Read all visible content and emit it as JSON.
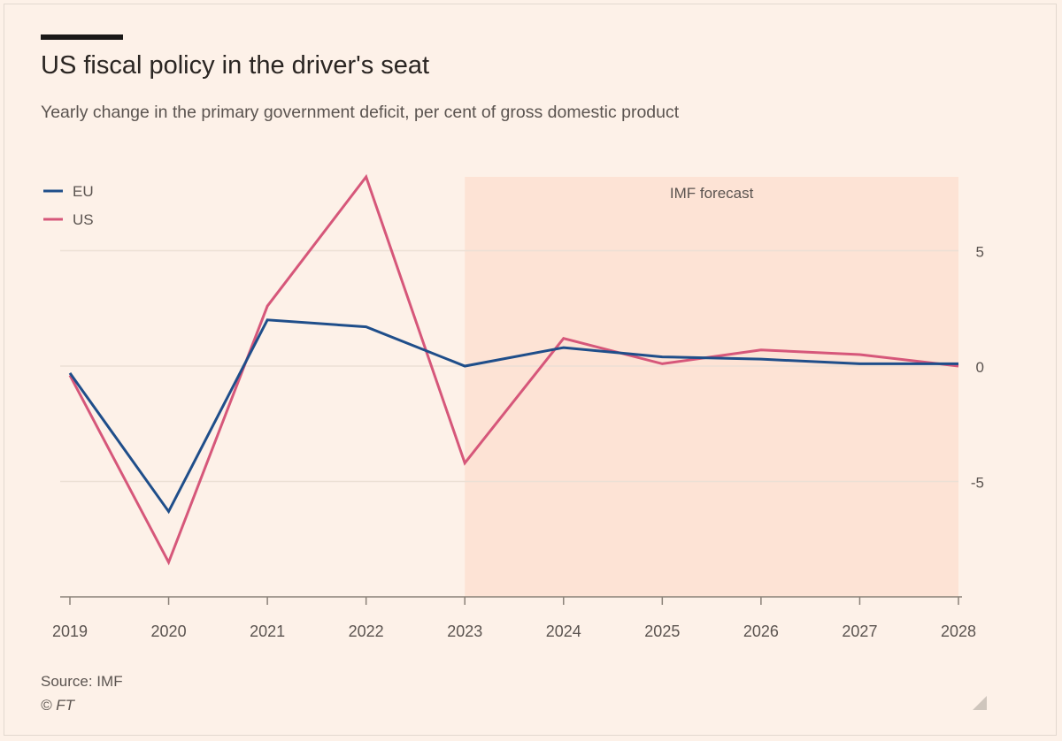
{
  "header": {
    "title": "US fiscal policy in the driver's seat",
    "subtitle": "Yearly change in the primary government deficit, per cent of gross domestic product"
  },
  "footer": {
    "source": "Source: IMF",
    "copyright": "© FT"
  },
  "colors": {
    "background": "#fdf1e8",
    "forecast_shade": "#fde3d5",
    "eu": "#1f4e8a",
    "us": "#d6577a",
    "grid": "#ece0d5",
    "axis": "#8a8178"
  },
  "chart_data": {
    "type": "line",
    "title": "US fiscal policy in the driver's seat",
    "subtitle": "Yearly change in the primary government deficit, per cent of gross domestic product",
    "xlabel": "",
    "ylabel": "",
    "x": [
      2019,
      2020,
      2021,
      2022,
      2023,
      2024,
      2025,
      2026,
      2027,
      2028
    ],
    "series": [
      {
        "name": "EU",
        "color": "#1f4e8a",
        "values": [
          -0.3,
          -6.3,
          2.0,
          1.7,
          0.0,
          0.8,
          0.4,
          0.3,
          0.1,
          0.1
        ]
      },
      {
        "name": "US",
        "color": "#d6577a",
        "values": [
          -0.4,
          -8.5,
          2.6,
          8.2,
          -4.2,
          1.2,
          0.1,
          0.7,
          0.5,
          0.0
        ]
      }
    ],
    "ylim": [
      -10,
      8.2
    ],
    "yticks": [
      5,
      0,
      -5
    ],
    "ytick_labels": [
      "5",
      "0",
      "-5"
    ],
    "xticks": [
      "2019",
      "2020",
      "2021",
      "2022",
      "2023",
      "2024",
      "2025",
      "2026",
      "2027",
      "2028"
    ],
    "legend": [
      "EU",
      "US"
    ],
    "legend_position": "top-left",
    "annotation": {
      "label": "IMF forecast",
      "x_start": 2023,
      "x_end": 2028
    },
    "grid": true
  }
}
